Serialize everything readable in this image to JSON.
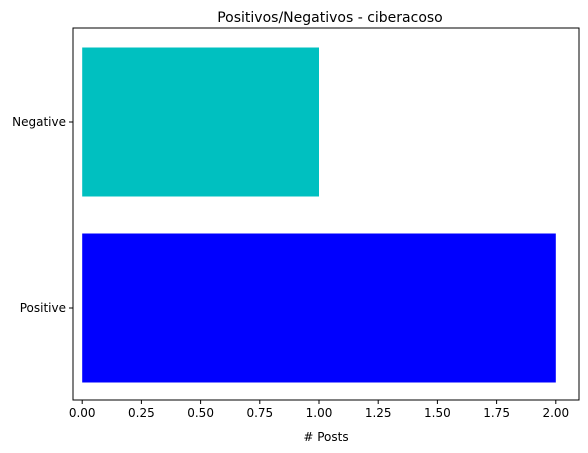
{
  "chart_data": {
    "type": "bar",
    "orientation": "horizontal",
    "title": "Positivos/Negativos - ciberacoso",
    "xlabel": "# Posts",
    "ylabel": "",
    "categories": [
      "Positive",
      "Negative"
    ],
    "values": [
      2,
      1
    ],
    "colors": [
      "#0000ff",
      "#00c0c0"
    ],
    "xlim": [
      0,
      2.1
    ],
    "xticks": [
      "0.00",
      "0.25",
      "0.50",
      "0.75",
      "1.00",
      "1.25",
      "1.50",
      "1.75",
      "2.00"
    ],
    "grid": false,
    "legend": "none"
  }
}
